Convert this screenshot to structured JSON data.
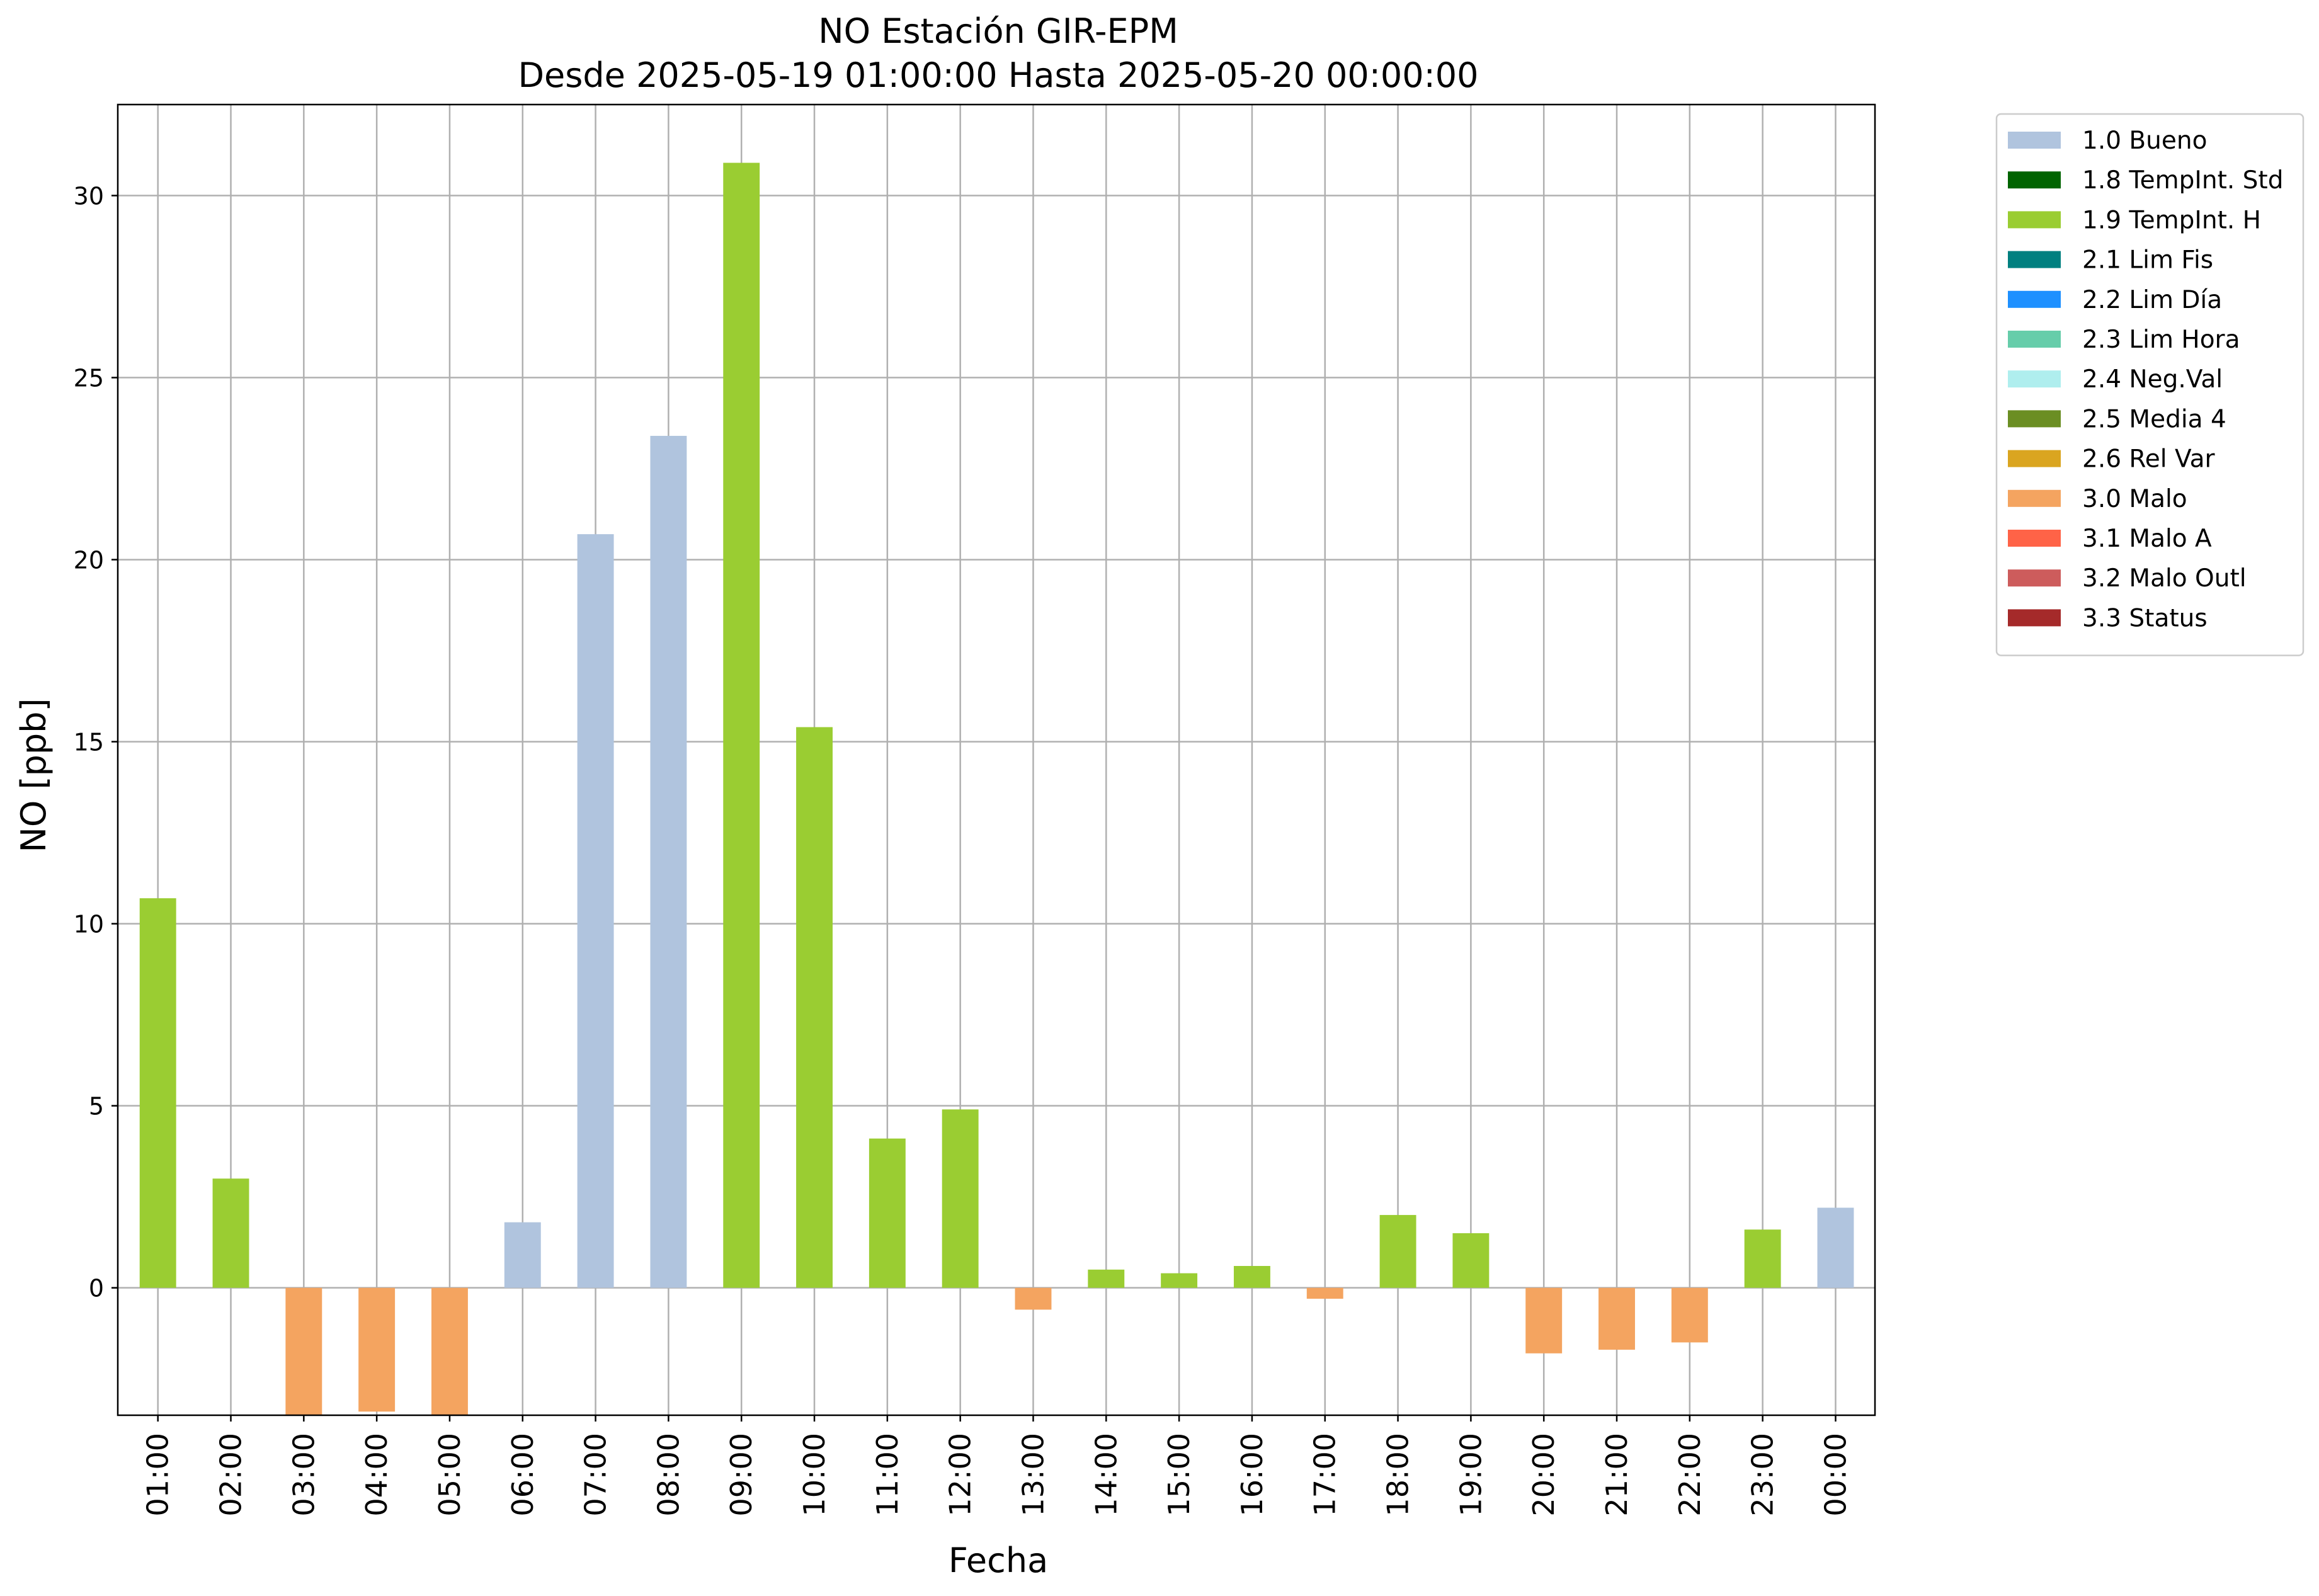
{
  "chart_data": {
    "type": "bar",
    "title": [
      "NO Estación GIR-EPM",
      "Desde 2025-05-19 01:00:00 Hasta 2025-05-20 00:00:00"
    ],
    "xlabel": "Fecha",
    "ylabel": "NO [ppb]",
    "ylim": [
      -3.5,
      32.5
    ],
    "yticks": [
      0,
      5,
      10,
      15,
      20,
      25,
      30
    ],
    "grid": true,
    "legend_position": "outside-top-right",
    "categories": [
      "01:00",
      "02:00",
      "03:00",
      "04:00",
      "05:00",
      "06:00",
      "07:00",
      "08:00",
      "09:00",
      "10:00",
      "11:00",
      "12:00",
      "13:00",
      "14:00",
      "15:00",
      "16:00",
      "17:00",
      "18:00",
      "19:00",
      "20:00",
      "21:00",
      "22:00",
      "23:00",
      "00:00"
    ],
    "values": [
      10.7,
      3.0,
      -3.5,
      -3.4,
      -3.5,
      1.8,
      20.7,
      23.4,
      30.9,
      15.4,
      4.1,
      4.9,
      -0.6,
      0.5,
      0.4,
      0.6,
      -0.3,
      2.0,
      1.5,
      -1.8,
      -1.7,
      -1.5,
      1.6,
      2.2
    ],
    "flags": [
      "1.9 TempInt. H",
      "1.9 TempInt. H",
      "3.0 Malo",
      "3.0 Malo",
      "3.0 Malo",
      "1.0 Bueno",
      "1.0 Bueno",
      "1.0 Bueno",
      "1.9 TempInt. H",
      "1.9 TempInt. H",
      "1.9 TempInt. H",
      "1.9 TempInt. H",
      "3.0 Malo",
      "1.9 TempInt. H",
      "1.9 TempInt. H",
      "1.9 TempInt. H",
      "3.0 Malo",
      "1.9 TempInt. H",
      "1.9 TempInt. H",
      "3.0 Malo",
      "3.0 Malo",
      "3.0 Malo",
      "1.9 TempInt. H",
      "1.0 Bueno"
    ],
    "legend": [
      {
        "name": "1.0 Bueno",
        "color": "#b0c4de"
      },
      {
        "name": "1.8 TempInt. Std",
        "color": "#006400"
      },
      {
        "name": "1.9 TempInt. H",
        "color": "#9acd32"
      },
      {
        "name": "2.1 Lim Fis",
        "color": "#008080"
      },
      {
        "name": "2.2 Lim Día",
        "color": "#1e90ff"
      },
      {
        "name": "2.3 Lim Hora",
        "color": "#66cdaa"
      },
      {
        "name": "2.4 Neg.Val",
        "color": "#afeeee"
      },
      {
        "name": "2.5 Media 4",
        "color": "#6b8e23"
      },
      {
        "name": "2.6 Rel Var",
        "color": "#daa520"
      },
      {
        "name": "3.0 Malo",
        "color": "#f4a460"
      },
      {
        "name": "3.1 Malo A",
        "color": "#ff6347"
      },
      {
        "name": "3.2 Malo Outl",
        "color": "#cd5c5c"
      },
      {
        "name": "3.3 Status",
        "color": "#a52a2a"
      }
    ]
  }
}
